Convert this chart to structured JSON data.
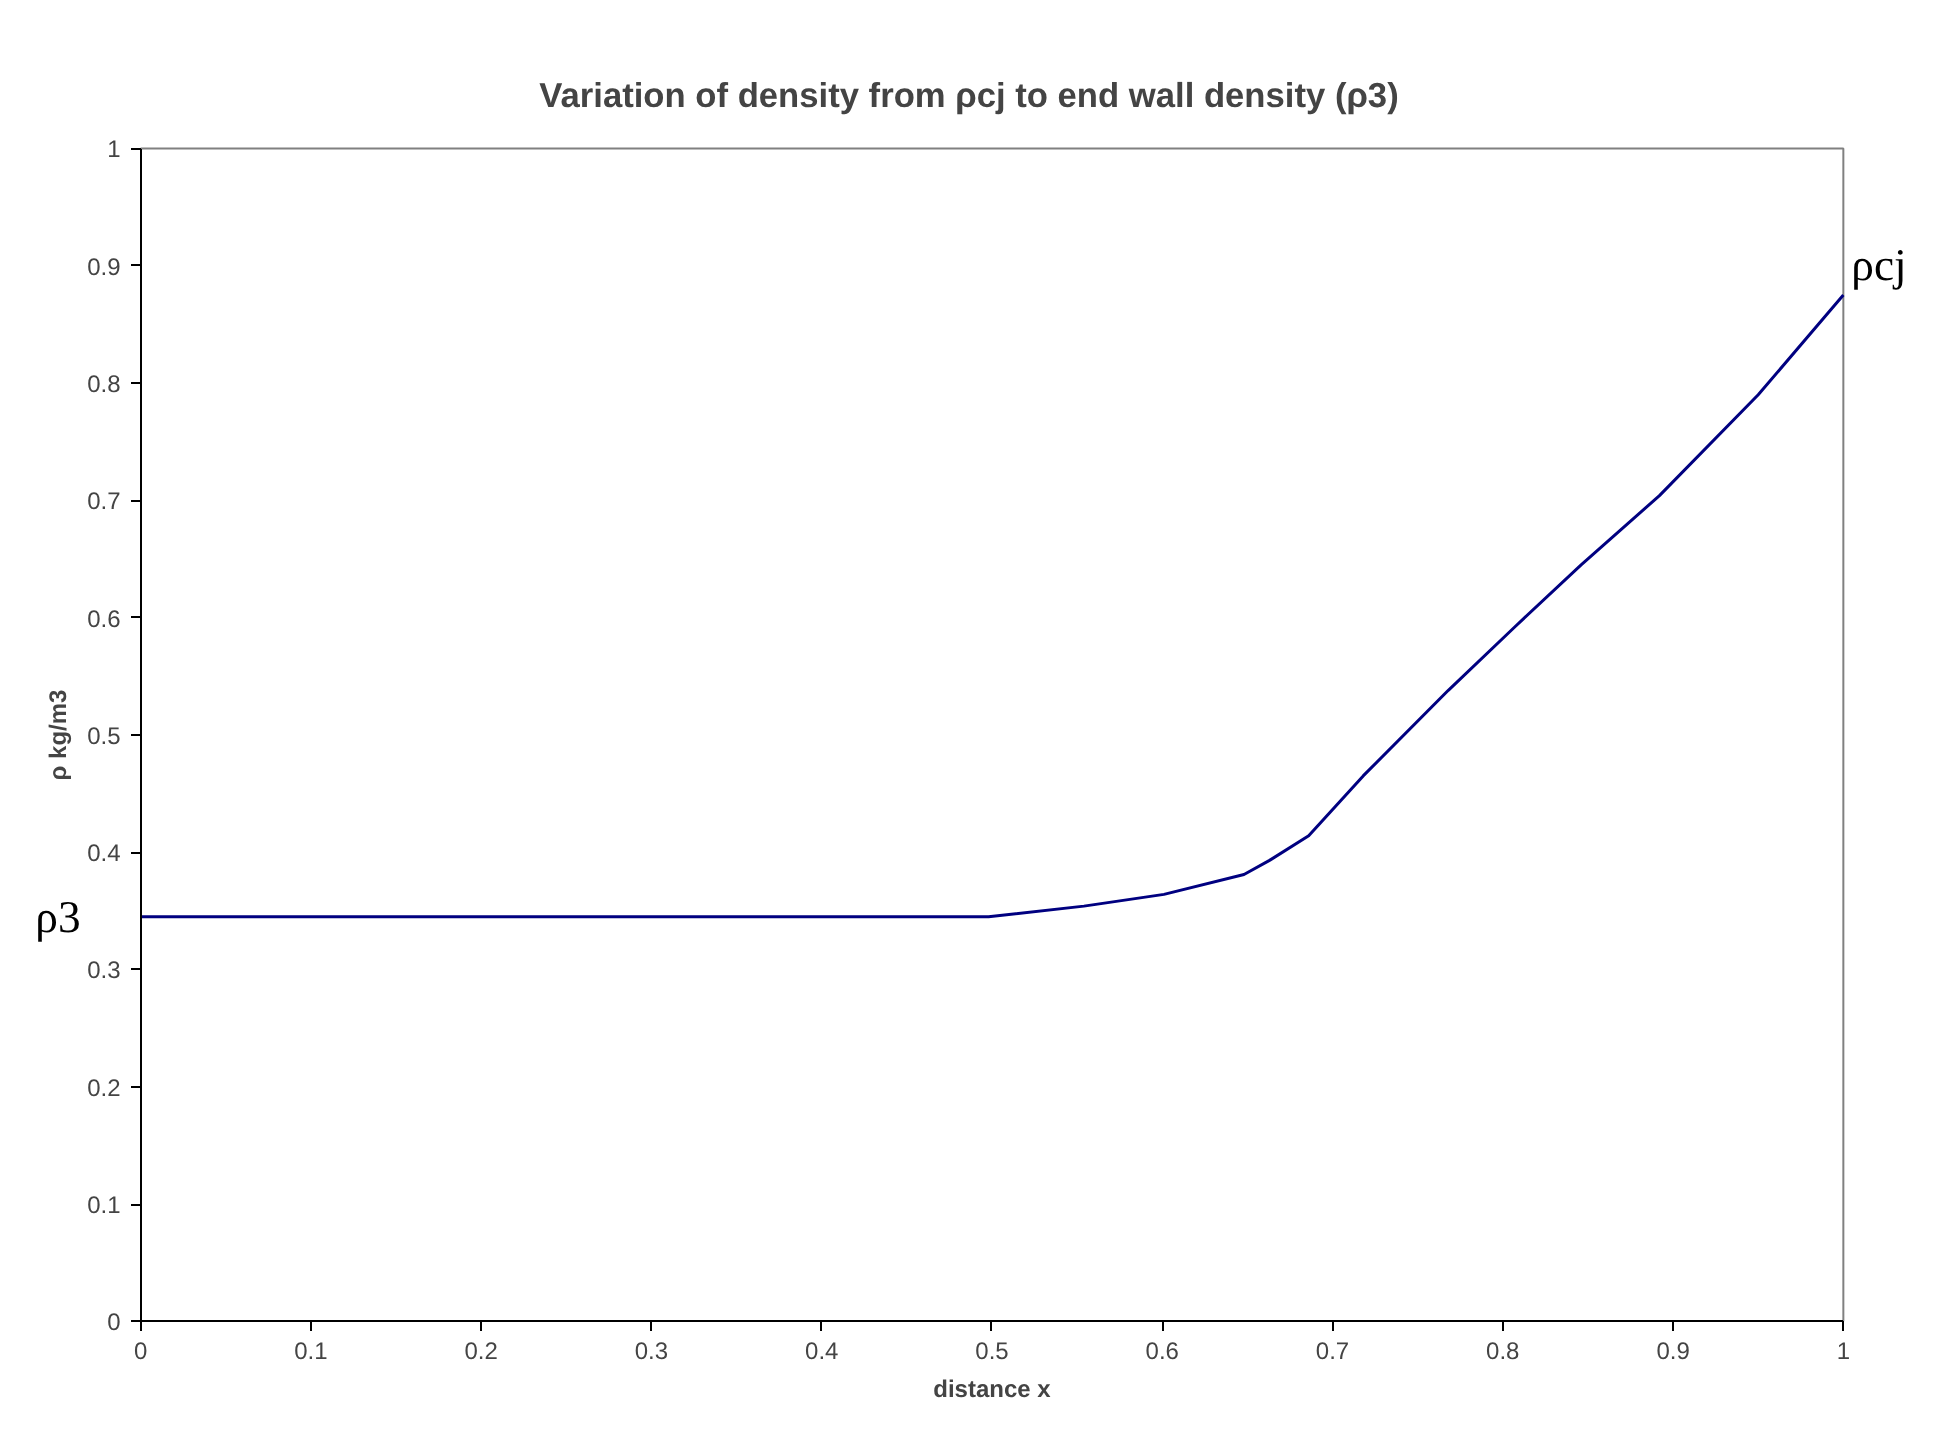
{
  "chart_data": {
    "type": "line",
    "title": "Variation of density from ρcj to end wall density (ρ3)",
    "xlabel": "distance x",
    "ylabel": "ρ kg/m3",
    "x": [
      0,
      0.1,
      0.2,
      0.3,
      0.4,
      0.498,
      0.554,
      0.601,
      0.648,
      0.663,
      0.686,
      0.718,
      0.768,
      0.807,
      0.846,
      0.892,
      0.95,
      1
    ],
    "series": [
      {
        "color": "#000080",
        "values": [
          0.345,
          0.345,
          0.345,
          0.345,
          0.345,
          0.345,
          0.354,
          0.364,
          0.381,
          0.393,
          0.414,
          0.465,
          0.538,
          0.592,
          0.645,
          0.704,
          0.79,
          0.875
        ]
      }
    ],
    "annotations": [
      {
        "text": "ρ3",
        "x": 0,
        "y": 0.345
      },
      {
        "text": "ρcj",
        "x": 1,
        "y": 0.875
      }
    ],
    "xlim": [
      0,
      1
    ],
    "ylim": [
      0,
      1
    ],
    "xticks": [
      0,
      0.1,
      0.2,
      0.3,
      0.4,
      0.5,
      0.6,
      0.7,
      0.8,
      0.9,
      1
    ],
    "yticks": [
      0,
      0.1,
      0.2,
      0.3,
      0.4,
      0.5,
      0.6,
      0.7,
      0.8,
      0.9,
      1
    ],
    "grid": false,
    "marker": "none",
    "line_style": "solid"
  }
}
